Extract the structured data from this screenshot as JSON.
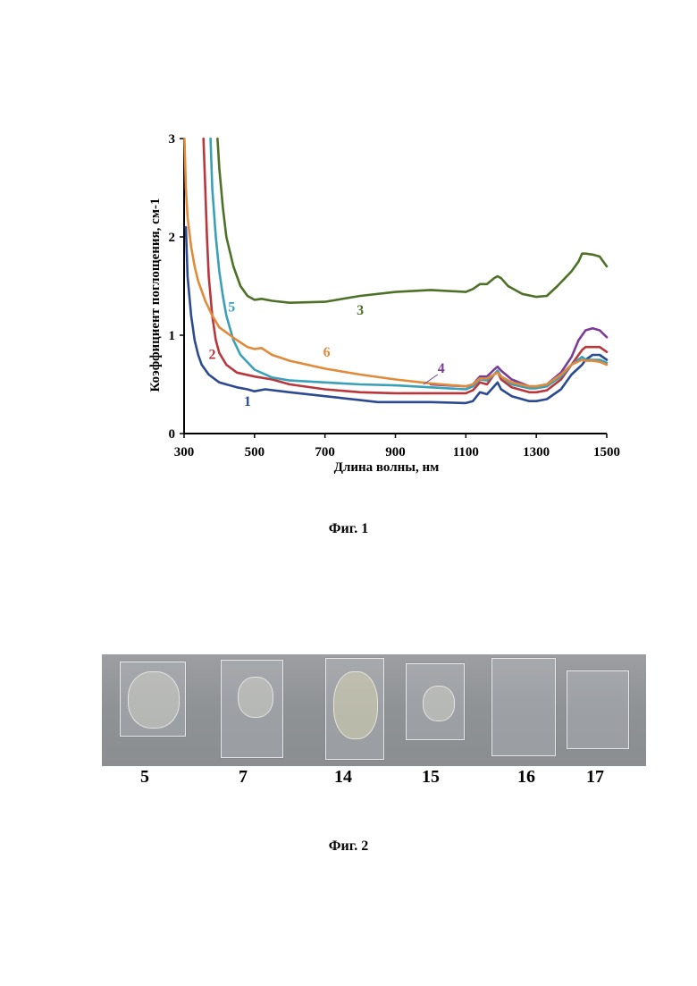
{
  "figures": {
    "fig1_caption": "Фиг. 1",
    "fig2_caption": "Фиг. 2"
  },
  "chart_data": {
    "type": "line",
    "xlabel": "Длина волны, нм",
    "ylabel": "Коэффициент поглощения, см-1",
    "xlim": [
      300,
      1500
    ],
    "ylim": [
      0,
      3
    ],
    "xticks": [
      300,
      500,
      700,
      900,
      1100,
      1300,
      1500
    ],
    "yticks": [
      0,
      1,
      2,
      3
    ],
    "grid": false,
    "series": [
      {
        "name": "1",
        "color": "#2b4a91",
        "x": [
          305,
          310,
          320,
          330,
          340,
          350,
          370,
          400,
          450,
          480,
          500,
          530,
          600,
          700,
          800,
          850,
          900,
          1000,
          1100,
          1120,
          1140,
          1160,
          1180,
          1190,
          1200,
          1230,
          1280,
          1300,
          1330,
          1370,
          1400,
          1430,
          1440,
          1460,
          1480,
          1500
        ],
        "y": [
          2.1,
          1.6,
          1.2,
          0.95,
          0.8,
          0.7,
          0.6,
          0.52,
          0.47,
          0.45,
          0.43,
          0.45,
          0.42,
          0.38,
          0.34,
          0.32,
          0.32,
          0.32,
          0.31,
          0.33,
          0.42,
          0.4,
          0.48,
          0.52,
          0.45,
          0.38,
          0.33,
          0.33,
          0.35,
          0.45,
          0.6,
          0.7,
          0.75,
          0.8,
          0.8,
          0.75
        ]
      },
      {
        "name": "2",
        "color": "#b8373d",
        "x": [
          355,
          360,
          365,
          370,
          380,
          390,
          400,
          420,
          450,
          500,
          550,
          600,
          700,
          800,
          900,
          1000,
          1100,
          1120,
          1140,
          1160,
          1180,
          1190,
          1200,
          1230,
          1280,
          1300,
          1330,
          1370,
          1400,
          1430,
          1440,
          1460,
          1480,
          1500
        ],
        "y": [
          3.0,
          2.5,
          2.0,
          1.6,
          1.2,
          0.95,
          0.82,
          0.7,
          0.62,
          0.58,
          0.55,
          0.5,
          0.45,
          0.42,
          0.41,
          0.41,
          0.41,
          0.44,
          0.52,
          0.5,
          0.6,
          0.63,
          0.55,
          0.47,
          0.42,
          0.42,
          0.44,
          0.55,
          0.7,
          0.85,
          0.88,
          0.88,
          0.88,
          0.83
        ]
      },
      {
        "name": "3",
        "color": "#4e7128",
        "x": [
          395,
          400,
          410,
          420,
          440,
          460,
          480,
          500,
          520,
          550,
          600,
          700,
          800,
          900,
          1000,
          1100,
          1120,
          1140,
          1160,
          1180,
          1190,
          1200,
          1220,
          1260,
          1300,
          1330,
          1360,
          1400,
          1420,
          1430,
          1440,
          1460,
          1480,
          1500
        ],
        "y": [
          3.0,
          2.7,
          2.3,
          2.0,
          1.7,
          1.5,
          1.4,
          1.36,
          1.37,
          1.35,
          1.33,
          1.34,
          1.4,
          1.44,
          1.46,
          1.44,
          1.47,
          1.52,
          1.52,
          1.58,
          1.6,
          1.58,
          1.5,
          1.42,
          1.39,
          1.4,
          1.5,
          1.65,
          1.75,
          1.83,
          1.83,
          1.82,
          1.8,
          1.7
        ]
      },
      {
        "name": "4",
        "color": "#7a3c98",
        "x": [
          1000,
          1100,
          1120,
          1140,
          1160,
          1180,
          1190,
          1200,
          1230,
          1280,
          1300,
          1330,
          1370,
          1400,
          1420,
          1440,
          1460,
          1480,
          1500
        ],
        "y": [
          0.5,
          0.48,
          0.5,
          0.58,
          0.58,
          0.65,
          0.68,
          0.64,
          0.55,
          0.48,
          0.48,
          0.5,
          0.62,
          0.78,
          0.95,
          1.05,
          1.07,
          1.05,
          0.98
        ]
      },
      {
        "name": "5",
        "color": "#3aa0b7",
        "x": [
          375,
          380,
          390,
          400,
          410,
          420,
          440,
          460,
          500,
          550,
          600,
          700,
          800,
          900,
          1000,
          1100,
          1120,
          1140,
          1160,
          1180,
          1190,
          1200,
          1230,
          1280,
          1300,
          1330,
          1370,
          1400,
          1430,
          1440,
          1460,
          1480,
          1500
        ],
        "y": [
          3.0,
          2.5,
          2.0,
          1.65,
          1.4,
          1.2,
          0.95,
          0.8,
          0.65,
          0.57,
          0.54,
          0.52,
          0.5,
          0.49,
          0.47,
          0.45,
          0.48,
          0.55,
          0.54,
          0.6,
          0.64,
          0.58,
          0.5,
          0.46,
          0.46,
          0.48,
          0.58,
          0.7,
          0.78,
          0.75,
          0.75,
          0.75,
          0.72
        ]
      },
      {
        "name": "6",
        "color": "#e08a3a",
        "x": [
          301,
          305,
          310,
          320,
          330,
          340,
          360,
          380,
          400,
          450,
          480,
          500,
          520,
          550,
          600,
          700,
          800,
          900,
          1000,
          1100,
          1120,
          1140,
          1160,
          1180,
          1190,
          1200,
          1230,
          1280,
          1300,
          1330,
          1370,
          1400,
          1430,
          1440,
          1460,
          1480,
          1500
        ],
        "y": [
          3.0,
          2.5,
          2.2,
          1.9,
          1.7,
          1.55,
          1.35,
          1.2,
          1.08,
          0.95,
          0.88,
          0.86,
          0.87,
          0.8,
          0.74,
          0.66,
          0.6,
          0.55,
          0.51,
          0.48,
          0.5,
          0.56,
          0.56,
          0.6,
          0.62,
          0.58,
          0.52,
          0.48,
          0.48,
          0.5,
          0.6,
          0.7,
          0.75,
          0.74,
          0.74,
          0.73,
          0.7
        ]
      }
    ],
    "series_labels": [
      {
        "text": "1",
        "x": 480,
        "y": 0.28,
        "color": "#2b4a91"
      },
      {
        "text": "2",
        "x": 380,
        "y": 0.76,
        "color": "#b8373d"
      },
      {
        "text": "3",
        "x": 800,
        "y": 1.21,
        "color": "#4e7128"
      },
      {
        "text": "4",
        "x": 1030,
        "y": 0.62,
        "color": "#7a3c98"
      },
      {
        "text": "5",
        "x": 435,
        "y": 1.24,
        "color": "#3aa0b7"
      },
      {
        "text": "6",
        "x": 705,
        "y": 0.78,
        "color": "#e08a3a"
      }
    ]
  },
  "photo": {
    "sample_labels": [
      "5",
      "7",
      "14",
      "15",
      "16",
      "17"
    ]
  }
}
